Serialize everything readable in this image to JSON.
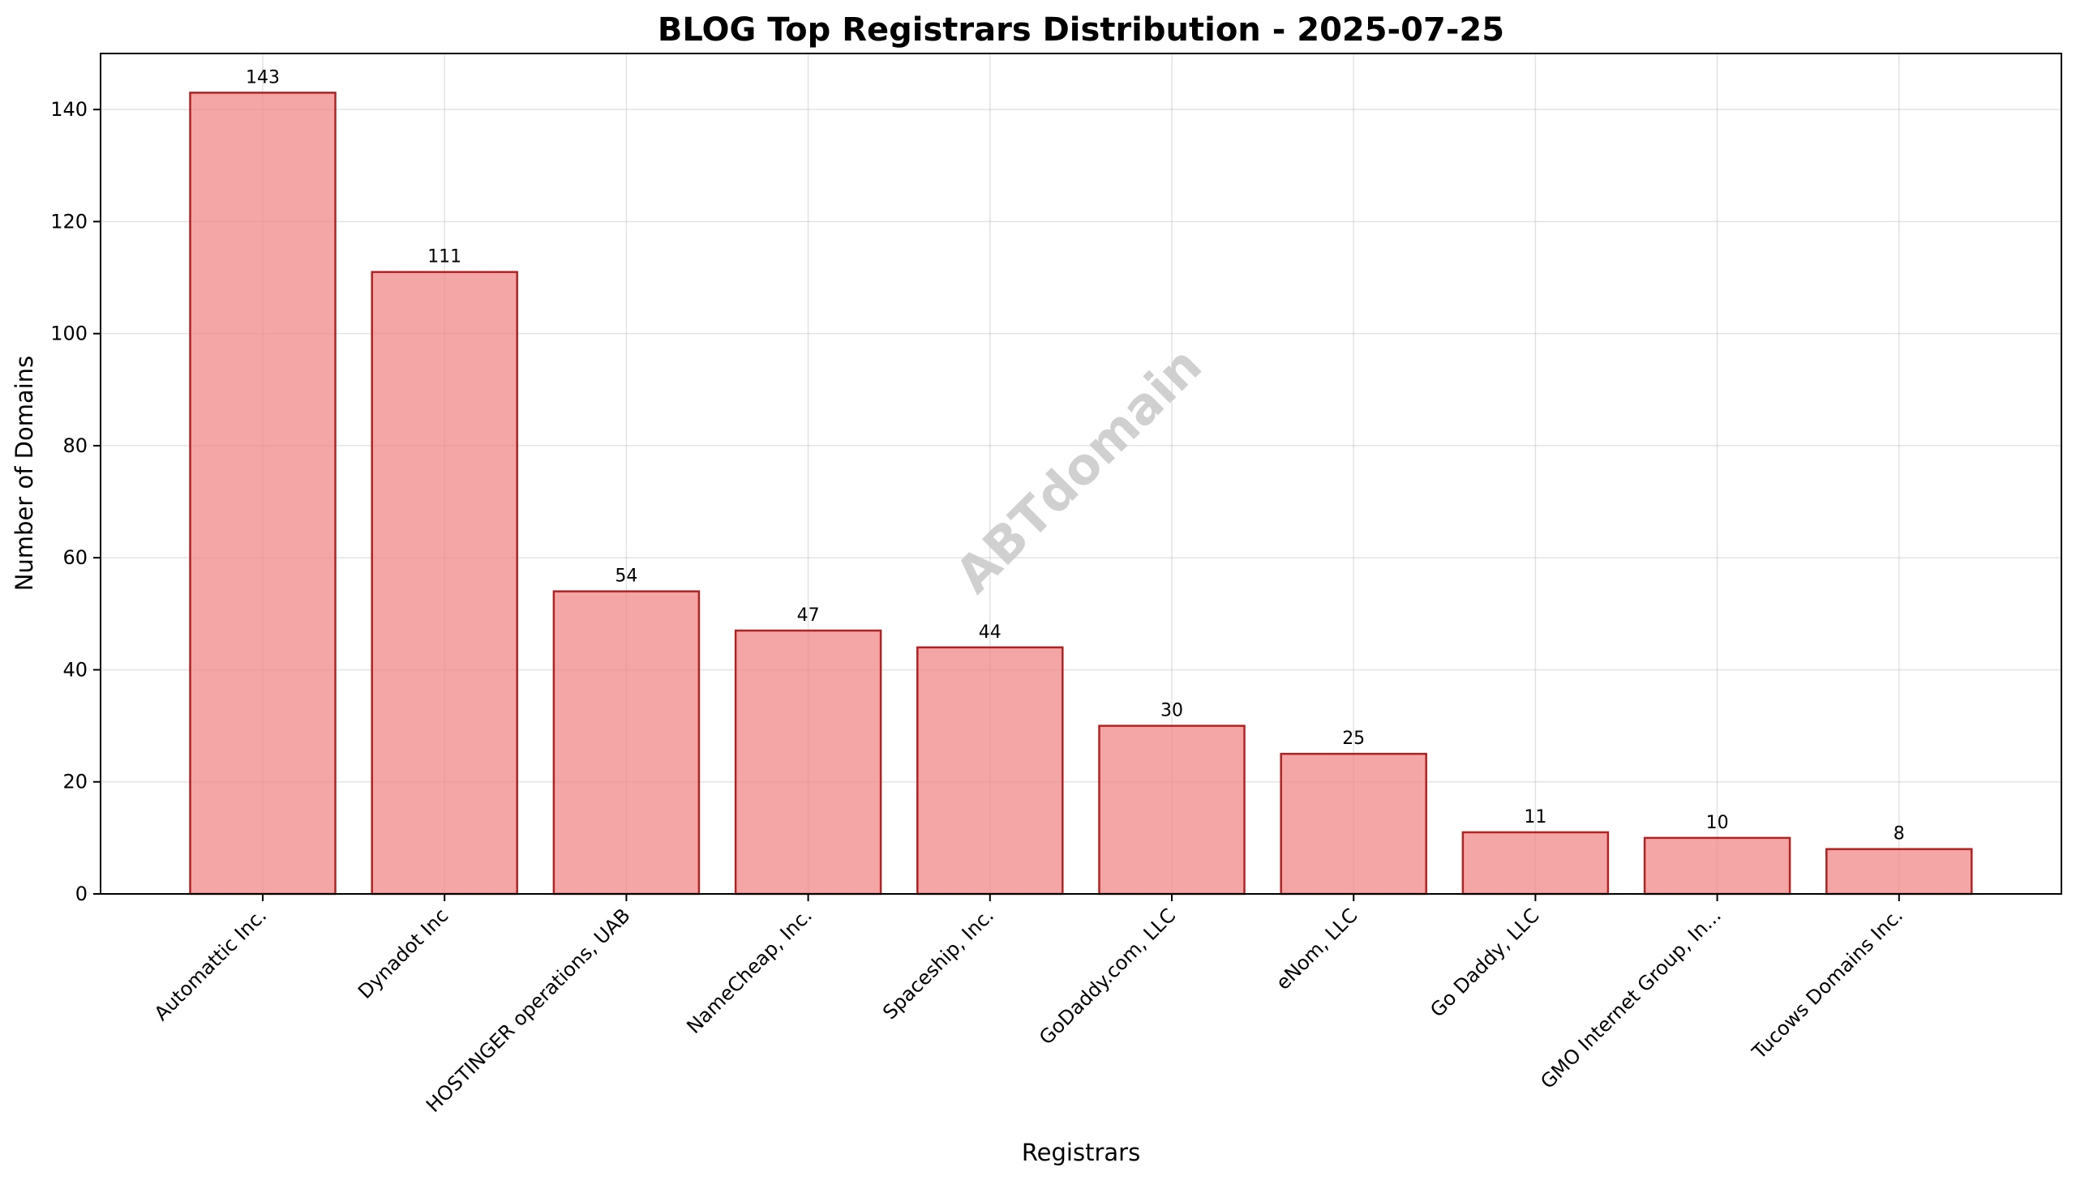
{
  "chart_data": {
    "type": "bar",
    "title": "BLOG Top Registrars Distribution - 2025-07-25",
    "xlabel": "Registrars",
    "ylabel": "Number of Domains",
    "categories": [
      "Automattic Inc.",
      "Dynadot Inc",
      "HOSTINGER operations, UAB",
      "NameCheap, Inc.",
      "Spaceship, Inc.",
      "GoDaddy.com, LLC",
      "eNom, LLC",
      "Go Daddy, LLC",
      "GMO Internet Group, In...",
      "Tucows Domains Inc."
    ],
    "values": [
      143,
      111,
      54,
      47,
      44,
      30,
      25,
      11,
      10,
      8
    ],
    "data_labels": [
      "143",
      "111",
      "54",
      "47",
      "44",
      "30",
      "25",
      "11",
      "10",
      "8"
    ],
    "ylim": [
      0,
      150
    ],
    "yticks": [
      0,
      20,
      40,
      60,
      80,
      100,
      120,
      140
    ],
    "ytick_labels": [
      "0",
      "20",
      "40",
      "60",
      "80",
      "100",
      "120",
      "140"
    ],
    "grid": true,
    "legend": "none",
    "colors": {
      "bar_fill": "#f08080",
      "bar_edge": "#b22222",
      "grid": "#b0b0b0"
    },
    "watermark": "ABTdomain"
  }
}
